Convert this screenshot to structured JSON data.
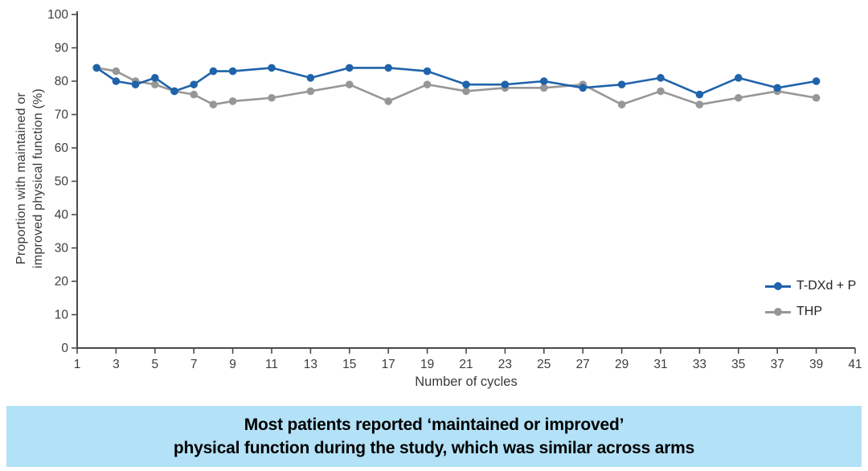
{
  "chart_data": {
    "type": "line",
    "title": "",
    "xlabel": "Number of cycles",
    "ylabel_line1": "Proportion with maintained or",
    "ylabel_line2": "improved physical function (%)",
    "xlim": [
      1,
      41
    ],
    "ylim": [
      0,
      100
    ],
    "x_ticks": [
      1,
      3,
      5,
      7,
      9,
      11,
      13,
      15,
      17,
      19,
      21,
      23,
      25,
      27,
      29,
      31,
      33,
      35,
      37,
      39,
      41
    ],
    "y_ticks": [
      0,
      10,
      20,
      30,
      40,
      50,
      60,
      70,
      80,
      90,
      100
    ],
    "grid": false,
    "legend_position": "right-lower-inside",
    "x": [
      2,
      3,
      4,
      5,
      6,
      7,
      8,
      9,
      11,
      13,
      15,
      17,
      19,
      21,
      23,
      25,
      27,
      29,
      31,
      33,
      35,
      37,
      39
    ],
    "series": [
      {
        "name": "T-DXd + P",
        "color": "#1f63aa",
        "values": [
          84,
          80,
          79,
          81,
          77,
          79,
          83,
          83,
          84,
          81,
          84,
          84,
          83,
          79,
          79,
          80,
          78,
          79,
          81,
          76,
          81,
          78,
          80
        ]
      },
      {
        "name": "THP",
        "color": "#979797",
        "values": [
          84,
          83,
          80,
          79,
          77,
          76,
          73,
          74,
          75,
          77,
          79,
          74,
          79,
          77,
          78,
          78,
          79,
          73,
          77,
          73,
          75,
          77,
          75
        ]
      }
    ],
    "axis_color": "#4a4a4a",
    "tick_label_color": "#3d3d3d"
  },
  "caption": {
    "line1": "Most patients reported ‘maintained or improved’",
    "line2": "physical function during the study, which was similar across arms",
    "background": "#b3e1f7",
    "text_color": "#000000"
  }
}
